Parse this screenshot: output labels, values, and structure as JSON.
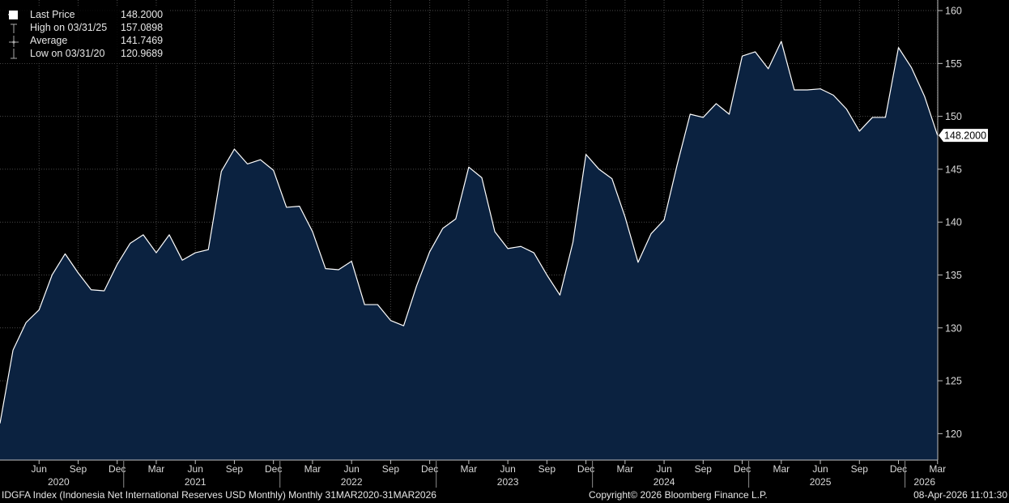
{
  "colors": {
    "background": "#000000",
    "area_fill": "#0b2240",
    "line": "#ffffff",
    "grid": "#4a4a4a",
    "axis_text": "#d9d9d9",
    "last_price_box": "#ffffff",
    "last_price_text": "#000000"
  },
  "legend": {
    "items": [
      {
        "label": "Last Price",
        "value": "148.2000",
        "icon": "filled-square-icon"
      },
      {
        "label": "High on 03/31/25",
        "value": "157.0898",
        "icon": "high-marker-icon"
      },
      {
        "label": "Average",
        "value": "141.7469",
        "icon": "average-marker-icon"
      },
      {
        "label": "Low on 03/31/20",
        "value": "120.9689",
        "icon": "low-marker-icon"
      }
    ]
  },
  "last_price_label": "148.2000",
  "footer": {
    "left": "IDGFA Index (Indonesia Net International Reserves USD Monthly) Monthly 31MAR2020-31MAR2026",
    "center": "Copyright© 2026 Bloomberg Finance L.P.",
    "right": "08-Apr-2026 11:01:30"
  },
  "chart_data": {
    "type": "area",
    "title": "",
    "xlabel": "",
    "ylabel": "",
    "ylim": [
      117.5,
      161
    ],
    "y_ticks": [
      120,
      125,
      130,
      135,
      140,
      145,
      150,
      155,
      160
    ],
    "grid": true,
    "y_axis_side": "right",
    "legend_position": "top-left",
    "x_month_ticks": [
      {
        "label": "Jun",
        "index": 3
      },
      {
        "label": "Sep",
        "index": 6
      },
      {
        "label": "Dec",
        "index": 9
      },
      {
        "label": "Mar",
        "index": 12
      },
      {
        "label": "Jun",
        "index": 15
      },
      {
        "label": "Sep",
        "index": 18
      },
      {
        "label": "Dec",
        "index": 21
      },
      {
        "label": "Mar",
        "index": 24
      },
      {
        "label": "Jun",
        "index": 27
      },
      {
        "label": "Sep",
        "index": 30
      },
      {
        "label": "Dec",
        "index": 33
      },
      {
        "label": "Mar",
        "index": 36
      },
      {
        "label": "Jun",
        "index": 39
      },
      {
        "label": "Sep",
        "index": 42
      },
      {
        "label": "Dec",
        "index": 45
      },
      {
        "label": "Mar",
        "index": 48
      },
      {
        "label": "Jun",
        "index": 51
      },
      {
        "label": "Sep",
        "index": 54
      },
      {
        "label": "Dec",
        "index": 57
      },
      {
        "label": "Mar",
        "index": 60
      },
      {
        "label": "Jun",
        "index": 63
      },
      {
        "label": "Sep",
        "index": 66
      },
      {
        "label": "Dec",
        "index": 69
      },
      {
        "label": "Mar",
        "index": 72
      }
    ],
    "x_year_labels": [
      {
        "label": "2020",
        "center_index": 4.5
      },
      {
        "label": "2021",
        "center_index": 15
      },
      {
        "label": "2022",
        "center_index": 27
      },
      {
        "label": "2023",
        "center_index": 39
      },
      {
        "label": "2024",
        "center_index": 51
      },
      {
        "label": "2025",
        "center_index": 63
      },
      {
        "label": "2026",
        "center_index": 71
      }
    ],
    "year_separators": [
      9.5,
      21.5,
      33.5,
      45.5,
      57.5,
      69.5
    ],
    "series": [
      {
        "x_start": "2020-03",
        "frequency": "monthly",
        "values": [
          120.97,
          127.9,
          130.5,
          131.7,
          135.0,
          137.0,
          135.2,
          133.6,
          133.5,
          136.0,
          138.0,
          138.8,
          137.1,
          138.8,
          136.4,
          137.1,
          137.4,
          144.8,
          146.9,
          145.5,
          145.9,
          144.9,
          141.4,
          141.5,
          139.1,
          135.6,
          135.5,
          136.3,
          132.2,
          132.2,
          130.7,
          130.2,
          134.0,
          137.2,
          139.4,
          140.3,
          145.2,
          144.2,
          139.1,
          137.5,
          137.7,
          137.1,
          135.0,
          133.1,
          138.1,
          146.4,
          145.0,
          144.1,
          140.5,
          136.2,
          138.9,
          140.2,
          145.4,
          150.2,
          149.9,
          151.2,
          150.2,
          155.7,
          156.1,
          154.5,
          157.09,
          152.5,
          152.5,
          152.6,
          152.0,
          150.7,
          148.6,
          149.9,
          149.9,
          156.5,
          154.6,
          151.9,
          148.2
        ]
      }
    ]
  }
}
